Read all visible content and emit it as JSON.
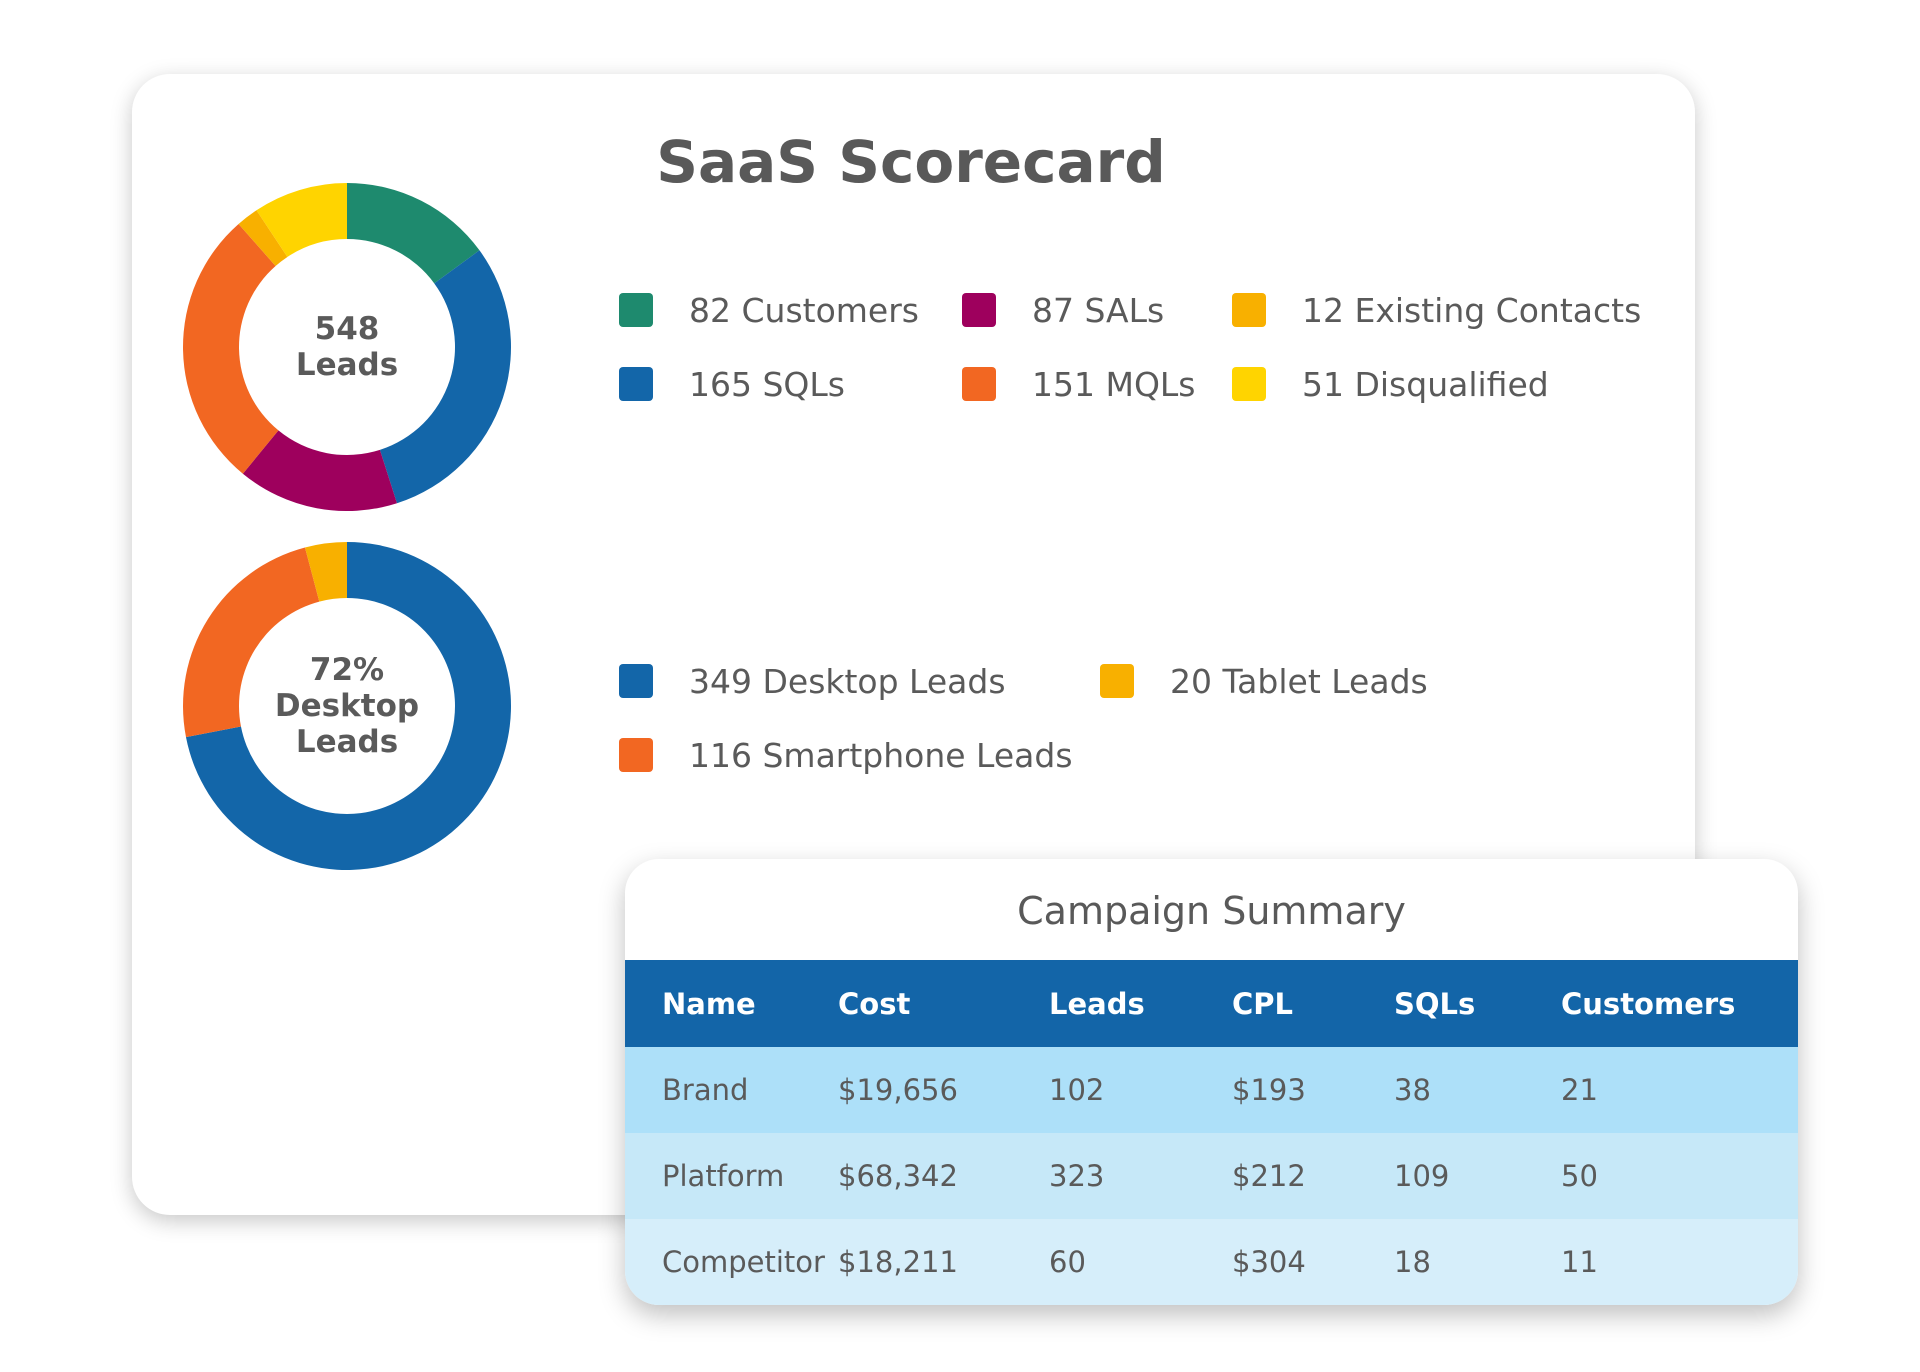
{
  "title": "SaaS Scorecard",
  "chart_data": [
    {
      "type": "pie",
      "donut": true,
      "center_label": [
        "548",
        "Leads"
      ],
      "slices": [
        {
          "label": "82 Customers",
          "value": 82,
          "color": "#1e8a6e"
        },
        {
          "label": "165 SQLs",
          "value": 165,
          "color": "#1366a9"
        },
        {
          "label": "87 SALs",
          "value": 87,
          "color": "#9e005d"
        },
        {
          "label": "151 MQLs",
          "value": 151,
          "color": "#f26722"
        },
        {
          "label": "12 Existing Contacts",
          "value": 12,
          "color": "#f8b000"
        },
        {
          "label": "51 Disqualified",
          "value": 51,
          "color": "#ffd400"
        }
      ],
      "legend": "right"
    },
    {
      "type": "pie",
      "donut": true,
      "center_label": [
        "72%",
        "Desktop",
        "Leads"
      ],
      "slices": [
        {
          "label": "349 Desktop Leads",
          "value": 349,
          "color": "#1366a9"
        },
        {
          "label": "116 Smartphone Leads",
          "value": 116,
          "color": "#f26722"
        },
        {
          "label": "20 Tablet Leads",
          "value": 20,
          "color": "#f8b000"
        }
      ],
      "legend": "right"
    }
  ],
  "campaign_summary": {
    "title": "Campaign Summary",
    "columns": [
      "Name",
      "Cost",
      "Leads",
      "CPL",
      "SQLs",
      "Customers"
    ],
    "rows": [
      [
        "Brand",
        "$19,656",
        "102",
        "$193",
        "38",
        "21"
      ],
      [
        "Platform",
        "$68,342",
        "323",
        "$212",
        "109",
        "50"
      ],
      [
        "Competitor",
        "$18,211",
        "60",
        "$304",
        "18",
        "11"
      ]
    ],
    "colors": {
      "header": "#1365a8",
      "row1": "#ade0f9",
      "row2": "#c6e8f8",
      "row3": "#d6eefa"
    }
  }
}
